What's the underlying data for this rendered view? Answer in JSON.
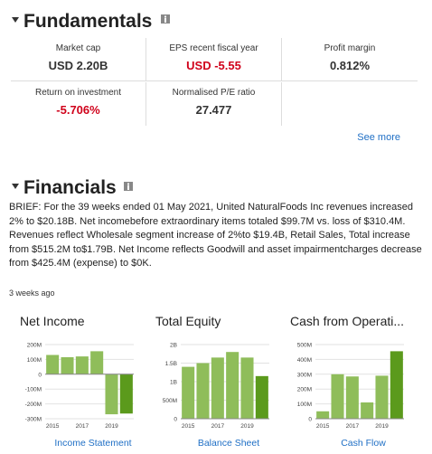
{
  "fundamentals": {
    "title": "Fundamentals",
    "metrics": [
      {
        "label": "Market cap",
        "value": "USD 2.20B"
      },
      {
        "label": "EPS recent fiscal year",
        "value": "USD -5.55"
      },
      {
        "label": "Profit margin",
        "value": "0.812%"
      },
      {
        "label": "Return on investment",
        "value": "-5.706%"
      },
      {
        "label": "Normalised P/E ratio",
        "value": "27.477"
      }
    ],
    "see_more": "See more"
  },
  "financials": {
    "title": "Financials",
    "summary": "BRIEF: For the 39 weeks ended 01 May 2021, United NaturalFoods Inc revenues increased 2% to $20.18B. Net incomebefore extraordinary items totaled $99.7M vs. loss of $310.4M. Revenues reflect Wholesale segment increase of 2%to $19.4B, Retail Sales, Total increase from $515.2M to$1.79B. Net Income reflects Goodwill and asset impairmentcharges decrease from $425.4M (expense) to $0K.",
    "timestamp": "3 weeks ago"
  },
  "chart_data": [
    {
      "type": "bar",
      "title": "Net Income",
      "categories": [
        "2015",
        null,
        "2017",
        null,
        "2019",
        null
      ],
      "values": [
        130,
        115,
        120,
        155,
        -270,
        -265
      ],
      "colors": [
        "#8fbd5a",
        "#8fbd5a",
        "#8fbd5a",
        "#8fbd5a",
        "#8fbd5a",
        "#5b9a1c"
      ],
      "ylim": [
        -300,
        200
      ],
      "yticks": [
        {
          "value": 200,
          "label": "200M"
        },
        {
          "value": 100,
          "label": "100M"
        },
        0,
        {
          "value": -100,
          "label": "-100M"
        },
        {
          "value": -200,
          "label": "-200M"
        },
        {
          "value": -300,
          "label": "-300M"
        }
      ],
      "grid": true,
      "link": "Income Statement"
    },
    {
      "type": "bar",
      "title": "Total Equity",
      "categories": [
        "2015",
        null,
        "2017",
        null,
        "2019",
        null
      ],
      "values": [
        1.4,
        1.5,
        1.65,
        1.8,
        1.65,
        1.15
      ],
      "colors": [
        "#8fbd5a",
        "#8fbd5a",
        "#8fbd5a",
        "#8fbd5a",
        "#8fbd5a",
        "#5b9a1c"
      ],
      "ylim": [
        0,
        2
      ],
      "yticks": [
        {
          "value": 2,
          "label": "2B"
        },
        {
          "value": 1.5,
          "label": "1.5B"
        },
        {
          "value": 1,
          "label": "1B"
        },
        {
          "value": 0.5,
          "label": "500M"
        },
        0
      ],
      "grid": true,
      "link": "Balance Sheet"
    },
    {
      "type": "bar",
      "title": "Cash from Operati...",
      "categories": [
        "2015",
        null,
        "2017",
        null,
        "2019",
        null
      ],
      "values": [
        50,
        300,
        285,
        110,
        290,
        455
      ],
      "colors": [
        "#8fbd5a",
        "#8fbd5a",
        "#8fbd5a",
        "#8fbd5a",
        "#8fbd5a",
        "#5b9a1c"
      ],
      "ylim": [
        0,
        500
      ],
      "yticks": [
        {
          "value": 500,
          "label": "500M"
        },
        {
          "value": 400,
          "label": "400M"
        },
        {
          "value": 300,
          "label": "300M"
        },
        {
          "value": 200,
          "label": "200M"
        },
        {
          "value": 100,
          "label": "100M"
        },
        0
      ],
      "grid": true,
      "link": "Cash Flow"
    }
  ]
}
